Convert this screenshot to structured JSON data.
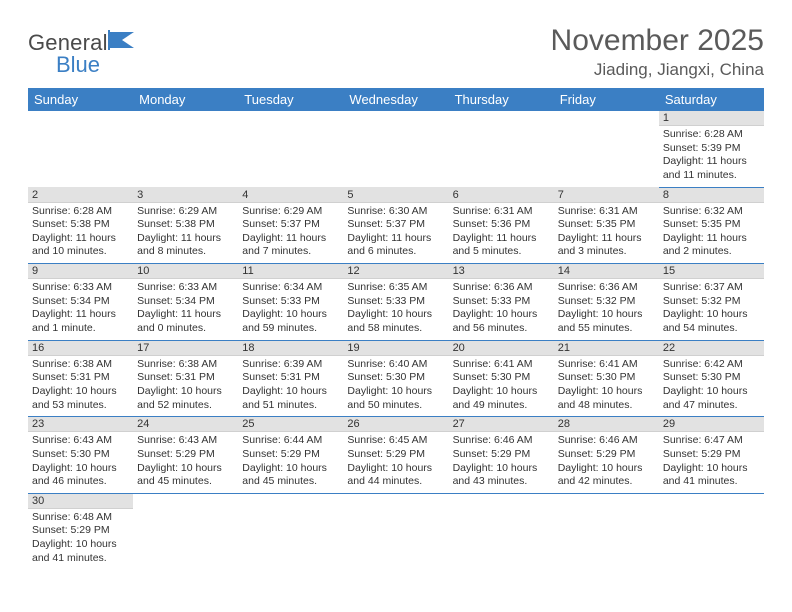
{
  "colors": {
    "header_bg": "#3b7fc4",
    "header_text": "#ffffff",
    "daynum_bg": "#e2e2e2",
    "row_border": "#3b7fc4",
    "body_text": "#333333",
    "title_text": "#5a5a5a",
    "logo_general": "#4a4a4a",
    "logo_blue": "#3b7fc4",
    "page_bg": "#ffffff"
  },
  "typography": {
    "title_fontsize": 30,
    "location_fontsize": 17,
    "weekday_fontsize": 13,
    "cell_fontsize": 10.5,
    "daynum_fontsize": 11,
    "logo_fontsize": 22
  },
  "logo": {
    "general": "General",
    "blue": "Blue"
  },
  "title": "November 2025",
  "location": "Jiading, Jiangxi, China",
  "weekdays": [
    "Sunday",
    "Monday",
    "Tuesday",
    "Wednesday",
    "Thursday",
    "Friday",
    "Saturday"
  ],
  "weeks": [
    [
      {
        "day": "",
        "sunrise": "",
        "sunset": "",
        "daylight": ""
      },
      {
        "day": "",
        "sunrise": "",
        "sunset": "",
        "daylight": ""
      },
      {
        "day": "",
        "sunrise": "",
        "sunset": "",
        "daylight": ""
      },
      {
        "day": "",
        "sunrise": "",
        "sunset": "",
        "daylight": ""
      },
      {
        "day": "",
        "sunrise": "",
        "sunset": "",
        "daylight": ""
      },
      {
        "day": "",
        "sunrise": "",
        "sunset": "",
        "daylight": ""
      },
      {
        "day": "1",
        "sunrise": "Sunrise: 6:28 AM",
        "sunset": "Sunset: 5:39 PM",
        "daylight": "Daylight: 11 hours and 11 minutes."
      }
    ],
    [
      {
        "day": "2",
        "sunrise": "Sunrise: 6:28 AM",
        "sunset": "Sunset: 5:38 PM",
        "daylight": "Daylight: 11 hours and 10 minutes."
      },
      {
        "day": "3",
        "sunrise": "Sunrise: 6:29 AM",
        "sunset": "Sunset: 5:38 PM",
        "daylight": "Daylight: 11 hours and 8 minutes."
      },
      {
        "day": "4",
        "sunrise": "Sunrise: 6:29 AM",
        "sunset": "Sunset: 5:37 PM",
        "daylight": "Daylight: 11 hours and 7 minutes."
      },
      {
        "day": "5",
        "sunrise": "Sunrise: 6:30 AM",
        "sunset": "Sunset: 5:37 PM",
        "daylight": "Daylight: 11 hours and 6 minutes."
      },
      {
        "day": "6",
        "sunrise": "Sunrise: 6:31 AM",
        "sunset": "Sunset: 5:36 PM",
        "daylight": "Daylight: 11 hours and 5 minutes."
      },
      {
        "day": "7",
        "sunrise": "Sunrise: 6:31 AM",
        "sunset": "Sunset: 5:35 PM",
        "daylight": "Daylight: 11 hours and 3 minutes."
      },
      {
        "day": "8",
        "sunrise": "Sunrise: 6:32 AM",
        "sunset": "Sunset: 5:35 PM",
        "daylight": "Daylight: 11 hours and 2 minutes."
      }
    ],
    [
      {
        "day": "9",
        "sunrise": "Sunrise: 6:33 AM",
        "sunset": "Sunset: 5:34 PM",
        "daylight": "Daylight: 11 hours and 1 minute."
      },
      {
        "day": "10",
        "sunrise": "Sunrise: 6:33 AM",
        "sunset": "Sunset: 5:34 PM",
        "daylight": "Daylight: 11 hours and 0 minutes."
      },
      {
        "day": "11",
        "sunrise": "Sunrise: 6:34 AM",
        "sunset": "Sunset: 5:33 PM",
        "daylight": "Daylight: 10 hours and 59 minutes."
      },
      {
        "day": "12",
        "sunrise": "Sunrise: 6:35 AM",
        "sunset": "Sunset: 5:33 PM",
        "daylight": "Daylight: 10 hours and 58 minutes."
      },
      {
        "day": "13",
        "sunrise": "Sunrise: 6:36 AM",
        "sunset": "Sunset: 5:33 PM",
        "daylight": "Daylight: 10 hours and 56 minutes."
      },
      {
        "day": "14",
        "sunrise": "Sunrise: 6:36 AM",
        "sunset": "Sunset: 5:32 PM",
        "daylight": "Daylight: 10 hours and 55 minutes."
      },
      {
        "day": "15",
        "sunrise": "Sunrise: 6:37 AM",
        "sunset": "Sunset: 5:32 PM",
        "daylight": "Daylight: 10 hours and 54 minutes."
      }
    ],
    [
      {
        "day": "16",
        "sunrise": "Sunrise: 6:38 AM",
        "sunset": "Sunset: 5:31 PM",
        "daylight": "Daylight: 10 hours and 53 minutes."
      },
      {
        "day": "17",
        "sunrise": "Sunrise: 6:38 AM",
        "sunset": "Sunset: 5:31 PM",
        "daylight": "Daylight: 10 hours and 52 minutes."
      },
      {
        "day": "18",
        "sunrise": "Sunrise: 6:39 AM",
        "sunset": "Sunset: 5:31 PM",
        "daylight": "Daylight: 10 hours and 51 minutes."
      },
      {
        "day": "19",
        "sunrise": "Sunrise: 6:40 AM",
        "sunset": "Sunset: 5:30 PM",
        "daylight": "Daylight: 10 hours and 50 minutes."
      },
      {
        "day": "20",
        "sunrise": "Sunrise: 6:41 AM",
        "sunset": "Sunset: 5:30 PM",
        "daylight": "Daylight: 10 hours and 49 minutes."
      },
      {
        "day": "21",
        "sunrise": "Sunrise: 6:41 AM",
        "sunset": "Sunset: 5:30 PM",
        "daylight": "Daylight: 10 hours and 48 minutes."
      },
      {
        "day": "22",
        "sunrise": "Sunrise: 6:42 AM",
        "sunset": "Sunset: 5:30 PM",
        "daylight": "Daylight: 10 hours and 47 minutes."
      }
    ],
    [
      {
        "day": "23",
        "sunrise": "Sunrise: 6:43 AM",
        "sunset": "Sunset: 5:30 PM",
        "daylight": "Daylight: 10 hours and 46 minutes."
      },
      {
        "day": "24",
        "sunrise": "Sunrise: 6:43 AM",
        "sunset": "Sunset: 5:29 PM",
        "daylight": "Daylight: 10 hours and 45 minutes."
      },
      {
        "day": "25",
        "sunrise": "Sunrise: 6:44 AM",
        "sunset": "Sunset: 5:29 PM",
        "daylight": "Daylight: 10 hours and 45 minutes."
      },
      {
        "day": "26",
        "sunrise": "Sunrise: 6:45 AM",
        "sunset": "Sunset: 5:29 PM",
        "daylight": "Daylight: 10 hours and 44 minutes."
      },
      {
        "day": "27",
        "sunrise": "Sunrise: 6:46 AM",
        "sunset": "Sunset: 5:29 PM",
        "daylight": "Daylight: 10 hours and 43 minutes."
      },
      {
        "day": "28",
        "sunrise": "Sunrise: 6:46 AM",
        "sunset": "Sunset: 5:29 PM",
        "daylight": "Daylight: 10 hours and 42 minutes."
      },
      {
        "day": "29",
        "sunrise": "Sunrise: 6:47 AM",
        "sunset": "Sunset: 5:29 PM",
        "daylight": "Daylight: 10 hours and 41 minutes."
      }
    ],
    [
      {
        "day": "30",
        "sunrise": "Sunrise: 6:48 AM",
        "sunset": "Sunset: 5:29 PM",
        "daylight": "Daylight: 10 hours and 41 minutes."
      },
      {
        "day": "",
        "sunrise": "",
        "sunset": "",
        "daylight": ""
      },
      {
        "day": "",
        "sunrise": "",
        "sunset": "",
        "daylight": ""
      },
      {
        "day": "",
        "sunrise": "",
        "sunset": "",
        "daylight": ""
      },
      {
        "day": "",
        "sunrise": "",
        "sunset": "",
        "daylight": ""
      },
      {
        "day": "",
        "sunrise": "",
        "sunset": "",
        "daylight": ""
      },
      {
        "day": "",
        "sunrise": "",
        "sunset": "",
        "daylight": ""
      }
    ]
  ]
}
